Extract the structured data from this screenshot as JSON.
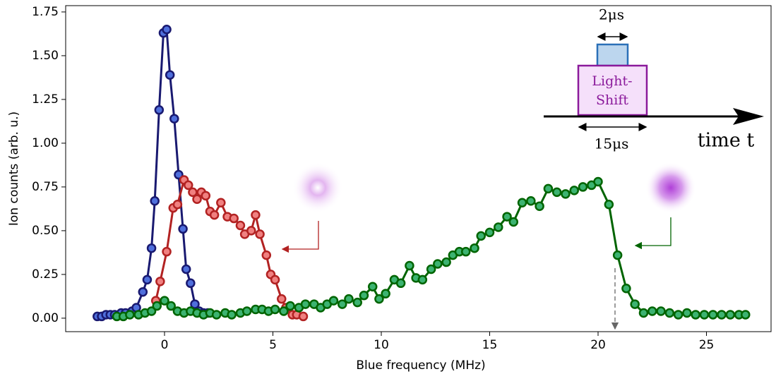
{
  "chart_data": {
    "type": "line",
    "xlabel": "Blue frequency (MHz)",
    "ylabel": "Ion counts (arb. u.)",
    "xlim": [
      -4.56,
      27.98
    ],
    "ylim": [
      -0.077,
      1.786
    ],
    "xticks": [
      0,
      5,
      10,
      15,
      20,
      25
    ],
    "yticks": [
      {
        "value": 0,
        "label": "0.00"
      },
      {
        "value": 0.25,
        "label": "0.25"
      },
      {
        "value": 0.5,
        "label": "0.50"
      },
      {
        "value": 0.75,
        "label": "0.75"
      },
      {
        "value": 1,
        "label": "1.00"
      },
      {
        "value": 1.25,
        "label": "1.25"
      },
      {
        "value": 1.5,
        "label": "1.50"
      },
      {
        "value": 1.75,
        "label": "1.75"
      }
    ],
    "annotations": [
      "2μs",
      "Light-",
      "Shift",
      "15μs",
      "time t"
    ],
    "series": [
      {
        "color": "#191970",
        "marker_color": "#4f6fdc",
        "x": [
          -3.1,
          -2.9,
          -2.7,
          -2.5,
          -2.3,
          -2.0,
          -1.8,
          -1.5,
          -1.3,
          -1.0,
          -0.8,
          -0.6,
          -0.45,
          -0.25,
          -0.05,
          0.1,
          0.25,
          0.45,
          0.65,
          0.85,
          1.0,
          1.2,
          1.4,
          1.6,
          1.8,
          2.0
        ],
        "values": [
          0.01,
          0.01,
          0.02,
          0.02,
          0.02,
          0.03,
          0.03,
          0.04,
          0.06,
          0.15,
          0.22,
          0.4,
          0.67,
          1.19,
          1.63,
          1.65,
          1.39,
          1.14,
          0.82,
          0.51,
          0.28,
          0.2,
          0.08,
          0.04,
          0.03,
          0.03
        ]
      },
      {
        "color": "#b22222",
        "marker_color": "#f08080",
        "x": [
          -0.4,
          -0.2,
          0.1,
          0.4,
          0.6,
          0.9,
          1.1,
          1.3,
          1.5,
          1.7,
          1.9,
          2.1,
          2.3,
          2.6,
          2.9,
          3.2,
          3.5,
          3.7,
          4.0,
          4.2,
          4.4,
          4.7,
          4.9,
          5.1,
          5.4,
          5.6,
          5.9,
          6.1,
          6.4
        ],
        "values": [
          0.1,
          0.21,
          0.38,
          0.63,
          0.65,
          0.79,
          0.76,
          0.72,
          0.68,
          0.72,
          0.7,
          0.61,
          0.59,
          0.66,
          0.58,
          0.57,
          0.53,
          0.48,
          0.5,
          0.59,
          0.48,
          0.36,
          0.25,
          0.22,
          0.11,
          0.06,
          0.02,
          0.02,
          0.01
        ]
      },
      {
        "color": "#006400",
        "marker_color": "#3cb371",
        "x": [
          -2.2,
          -1.9,
          -1.6,
          -1.2,
          -0.9,
          -0.6,
          -0.35,
          0.0,
          0.3,
          0.6,
          0.9,
          1.2,
          1.5,
          1.8,
          2.1,
          2.4,
          2.8,
          3.1,
          3.5,
          3.8,
          4.2,
          4.5,
          4.8,
          5.1,
          5.5,
          5.8,
          6.2,
          6.5,
          6.9,
          7.2,
          7.5,
          7.8,
          8.2,
          8.5,
          8.9,
          9.2,
          9.6,
          9.9,
          10.2,
          10.6,
          10.9,
          11.3,
          11.6,
          11.9,
          12.3,
          12.6,
          13.0,
          13.3,
          13.6,
          13.9,
          14.3,
          14.6,
          15.0,
          15.4,
          15.8,
          16.1,
          16.5,
          16.9,
          17.3,
          17.7,
          18.1,
          18.5,
          18.9,
          19.3,
          19.7,
          20.0,
          20.5,
          20.9,
          21.3,
          21.7,
          22.1,
          22.5,
          22.9,
          23.3,
          23.7,
          24.1,
          24.5,
          24.9,
          25.3,
          25.7,
          26.1,
          26.5,
          26.8
        ],
        "values": [
          0.01,
          0.01,
          0.02,
          0.02,
          0.03,
          0.04,
          0.07,
          0.1,
          0.07,
          0.04,
          0.03,
          0.04,
          0.03,
          0.02,
          0.03,
          0.02,
          0.03,
          0.02,
          0.03,
          0.04,
          0.05,
          0.05,
          0.04,
          0.05,
          0.04,
          0.07,
          0.06,
          0.08,
          0.08,
          0.06,
          0.08,
          0.1,
          0.08,
          0.11,
          0.09,
          0.13,
          0.18,
          0.11,
          0.14,
          0.22,
          0.2,
          0.3,
          0.23,
          0.22,
          0.28,
          0.31,
          0.32,
          0.36,
          0.38,
          0.38,
          0.4,
          0.47,
          0.49,
          0.52,
          0.58,
          0.55,
          0.66,
          0.67,
          0.64,
          0.74,
          0.72,
          0.71,
          0.73,
          0.75,
          0.76,
          0.78,
          0.65,
          0.36,
          0.17,
          0.08,
          0.03,
          0.04,
          0.04,
          0.03,
          0.02,
          0.03,
          0.02,
          0.02,
          0.02,
          0.02,
          0.02,
          0.02,
          0.02
        ]
      }
    ]
  }
}
